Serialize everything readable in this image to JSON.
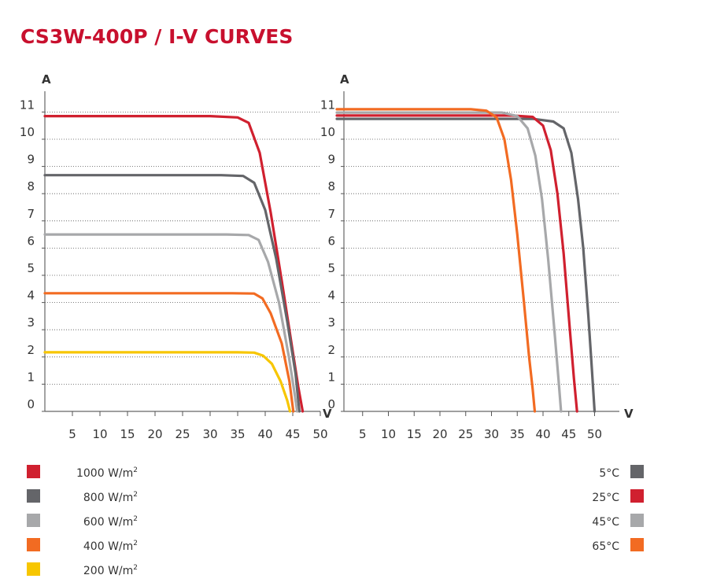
{
  "title": "CS3W-400P / I-V CURVES",
  "chart_data": [
    {
      "type": "line",
      "xlabel": "V",
      "ylabel": "A",
      "xlim": [
        0,
        50
      ],
      "ylim": [
        0,
        11
      ],
      "x_ticks": [
        5,
        10,
        15,
        20,
        25,
        30,
        35,
        40,
        45,
        50
      ],
      "y_ticks": [
        0,
        1,
        2,
        3,
        4,
        5,
        6,
        7,
        8,
        9,
        10,
        11
      ],
      "grid": "horizontal-dotted",
      "legend": "bottom-left",
      "series": [
        {
          "name": "1000 W/m²",
          "color": "#d0202f",
          "points": [
            [
              0,
              10.85
            ],
            [
              30,
              10.85
            ],
            [
              35,
              10.8
            ],
            [
              37,
              10.6
            ],
            [
              39,
              9.5
            ],
            [
              41,
              7.3
            ],
            [
              43,
              4.8
            ],
            [
              45,
              2.2
            ],
            [
              46,
              0.9
            ],
            [
              46.8,
              0
            ]
          ]
        },
        {
          "name": "800 W/m²",
          "color": "#646569",
          "points": [
            [
              0,
              8.68
            ],
            [
              32,
              8.68
            ],
            [
              36,
              8.65
            ],
            [
              38,
              8.4
            ],
            [
              40,
              7.4
            ],
            [
              42,
              5.6
            ],
            [
              44,
              3.3
            ],
            [
              45.5,
              1.4
            ],
            [
              46.2,
              0
            ]
          ]
        },
        {
          "name": "600 W/m²",
          "color": "#a7a8aa",
          "points": [
            [
              0,
              6.5
            ],
            [
              33,
              6.5
            ],
            [
              37,
              6.48
            ],
            [
              38.8,
              6.3
            ],
            [
              40.5,
              5.5
            ],
            [
              42.5,
              4.0
            ],
            [
              44.3,
              2.0
            ],
            [
              45.3,
              0.7
            ],
            [
              45.8,
              0
            ]
          ]
        },
        {
          "name": "400 W/m²",
          "color": "#f26b22",
          "points": [
            [
              0,
              4.34
            ],
            [
              34,
              4.34
            ],
            [
              38,
              4.33
            ],
            [
              39.5,
              4.15
            ],
            [
              41,
              3.6
            ],
            [
              43,
              2.5
            ],
            [
              44.4,
              1.1
            ],
            [
              45.1,
              0
            ]
          ]
        },
        {
          "name": "200 W/m²",
          "color": "#f7c600",
          "points": [
            [
              0,
              2.17
            ],
            [
              35,
              2.17
            ],
            [
              38,
              2.16
            ],
            [
              39.6,
              2.05
            ],
            [
              41.2,
              1.75
            ],
            [
              42.8,
              1.1
            ],
            [
              44,
              0.4
            ],
            [
              44.5,
              0
            ]
          ]
        }
      ]
    },
    {
      "type": "line",
      "xlabel": "V",
      "ylabel": "A",
      "xlim": [
        0,
        50
      ],
      "ylim": [
        0,
        11
      ],
      "x_ticks": [
        5,
        10,
        15,
        20,
        25,
        30,
        35,
        40,
        45,
        50
      ],
      "y_ticks": [
        0,
        1,
        2,
        3,
        4,
        5,
        6,
        7,
        8,
        9,
        10,
        11
      ],
      "grid": "horizontal-dotted",
      "legend": "bottom-right",
      "series": [
        {
          "name": "5°C",
          "color": "#646569",
          "points": [
            [
              0,
              10.75
            ],
            [
              38,
              10.75
            ],
            [
              42,
              10.65
            ],
            [
              44,
              10.4
            ],
            [
              45.5,
              9.5
            ],
            [
              46.8,
              7.8
            ],
            [
              47.8,
              6.0
            ],
            [
              48.8,
              3.5
            ],
            [
              49.5,
              1.5
            ],
            [
              50,
              0
            ]
          ]
        },
        {
          "name": "25°C",
          "color": "#d0202f",
          "points": [
            [
              0,
              10.87
            ],
            [
              34,
              10.87
            ],
            [
              38,
              10.82
            ],
            [
              40,
              10.5
            ],
            [
              41.5,
              9.6
            ],
            [
              42.8,
              8.0
            ],
            [
              44,
              5.8
            ],
            [
              45.2,
              3.0
            ],
            [
              46,
              1.2
            ],
            [
              46.6,
              0
            ]
          ]
        },
        {
          "name": "45°C",
          "color": "#a7a8aa",
          "points": [
            [
              0,
              10.98
            ],
            [
              32,
              10.98
            ],
            [
              35,
              10.85
            ],
            [
              37,
              10.4
            ],
            [
              38.5,
              9.4
            ],
            [
              39.8,
              7.8
            ],
            [
              41,
              5.6
            ],
            [
              42.2,
              3.0
            ],
            [
              43,
              1.2
            ],
            [
              43.5,
              0
            ]
          ]
        },
        {
          "name": "65°C",
          "color": "#f26b22",
          "points": [
            [
              0,
              11.1
            ],
            [
              26,
              11.1
            ],
            [
              29,
              11.05
            ],
            [
              31,
              10.8
            ],
            [
              32.5,
              10.0
            ],
            [
              33.8,
              8.5
            ],
            [
              35,
              6.5
            ],
            [
              36.3,
              4.0
            ],
            [
              37.3,
              2.0
            ],
            [
              38,
              0.8
            ],
            [
              38.4,
              0
            ]
          ]
        }
      ]
    }
  ],
  "legend_left": [
    {
      "label": "1000 W/m",
      "sup": "2",
      "color": "#d0202f"
    },
    {
      "label": "800 W/m",
      "sup": "2",
      "color": "#646569"
    },
    {
      "label": "600 W/m",
      "sup": "2",
      "color": "#a7a8aa"
    },
    {
      "label": "400 W/m",
      "sup": "2",
      "color": "#f26b22"
    },
    {
      "label": "200 W/m",
      "sup": "2",
      "color": "#f7c600"
    }
  ],
  "legend_right": [
    {
      "label": "5°C",
      "color": "#646569"
    },
    {
      "label": "25°C",
      "color": "#d0202f"
    },
    {
      "label": "45°C",
      "color": "#a7a8aa"
    },
    {
      "label": "65°C",
      "color": "#f26b22"
    }
  ]
}
